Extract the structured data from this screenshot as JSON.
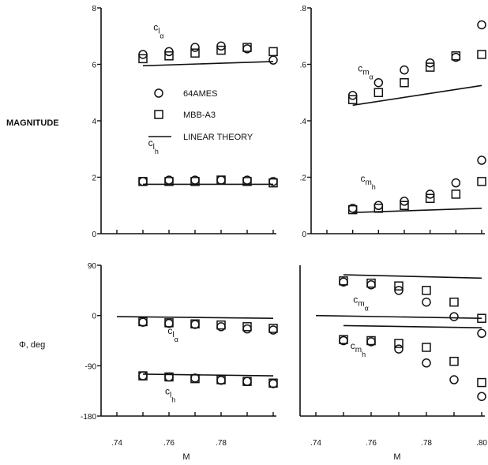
{
  "figure": {
    "ylabel_top": "MAGNITUDE",
    "ylabel_bottom": "Φ, deg",
    "xlabel": "M"
  },
  "legend": {
    "placement": "top-left panel, center",
    "entries": [
      {
        "label": "64AMES",
        "marker": "circle"
      },
      {
        "label": "MBB-A3",
        "marker": "square"
      },
      {
        "label": "LINEAR THEORY",
        "marker": "line"
      }
    ]
  },
  "chart_data": [
    {
      "type": "scatter",
      "panel": "top-left",
      "ylabel": "MAGNITUDE",
      "xlim": [
        0.74,
        0.8
      ],
      "ylim": [
        0,
        8
      ],
      "yticks": [
        "0",
        "2",
        "4",
        "6",
        "8"
      ],
      "annotations": [
        {
          "base": "c",
          "sub": "l",
          "subsub": "α",
          "at": [
            0.754,
            7.2
          ]
        },
        {
          "base": "c",
          "sub": "l",
          "subsub": "h",
          "at": [
            0.752,
            3.1
          ]
        }
      ],
      "series": [
        {
          "name": "64AMES",
          "marker": "circle",
          "group": "c_l_alpha",
          "x": [
            0.75,
            0.76,
            0.77,
            0.78,
            0.79,
            0.8
          ],
          "y": [
            6.35,
            6.45,
            6.6,
            6.65,
            6.55,
            6.15
          ]
        },
        {
          "name": "MBB-A3",
          "marker": "square",
          "group": "c_l_alpha",
          "x": [
            0.75,
            0.76,
            0.77,
            0.78,
            0.79,
            0.8
          ],
          "y": [
            6.2,
            6.3,
            6.4,
            6.5,
            6.6,
            6.45
          ]
        },
        {
          "name": "LINEAR THEORY",
          "marker": "line",
          "group": "c_l_alpha",
          "x": [
            0.75,
            0.8
          ],
          "y": [
            5.95,
            6.1
          ]
        },
        {
          "name": "64AMES",
          "marker": "circle",
          "group": "c_l_h",
          "x": [
            0.75,
            0.76,
            0.77,
            0.78,
            0.79,
            0.8
          ],
          "y": [
            1.85,
            1.9,
            1.9,
            1.9,
            1.9,
            1.85
          ]
        },
        {
          "name": "MBB-A3",
          "marker": "square",
          "group": "c_l_h",
          "x": [
            0.75,
            0.76,
            0.77,
            0.78,
            0.79,
            0.8
          ],
          "y": [
            1.85,
            1.85,
            1.85,
            1.9,
            1.85,
            1.8
          ]
        },
        {
          "name": "LINEAR THEORY",
          "marker": "line",
          "group": "c_l_h",
          "x": [
            0.75,
            0.8
          ],
          "y": [
            1.75,
            1.75
          ]
        }
      ]
    },
    {
      "type": "scatter",
      "panel": "top-right",
      "xlim": [
        0.74,
        0.8
      ],
      "ylim": [
        0,
        0.8
      ],
      "yticks": [
        "0",
        ".2",
        ".4",
        ".6",
        ".8"
      ],
      "annotations": [
        {
          "base": "c",
          "sub": "m",
          "subsub": "α",
          "at": [
            0.752,
            0.575
          ]
        },
        {
          "base": "c",
          "sub": "m",
          "subsub": "h",
          "at": [
            0.753,
            0.185
          ]
        }
      ],
      "series": [
        {
          "name": "64AMES",
          "marker": "circle",
          "group": "c_m_alpha",
          "x": [
            0.75,
            0.76,
            0.77,
            0.78,
            0.79,
            0.8
          ],
          "y": [
            0.49,
            0.535,
            0.58,
            0.605,
            0.625,
            0.74
          ]
        },
        {
          "name": "MBB-A3",
          "marker": "square",
          "group": "c_m_alpha",
          "x": [
            0.75,
            0.76,
            0.77,
            0.78,
            0.79,
            0.8
          ],
          "y": [
            0.475,
            0.5,
            0.535,
            0.59,
            0.63,
            0.635
          ]
        },
        {
          "name": "LINEAR THEORY",
          "marker": "line",
          "group": "c_m_alpha",
          "x": [
            0.75,
            0.8
          ],
          "y": [
            0.455,
            0.525
          ]
        },
        {
          "name": "64AMES",
          "marker": "circle",
          "group": "c_m_h",
          "x": [
            0.75,
            0.76,
            0.77,
            0.78,
            0.79,
            0.8
          ],
          "y": [
            0.09,
            0.1,
            0.115,
            0.14,
            0.18,
            0.26
          ]
        },
        {
          "name": "MBB-A3",
          "marker": "square",
          "group": "c_m_h",
          "x": [
            0.75,
            0.76,
            0.77,
            0.78,
            0.79,
            0.8
          ],
          "y": [
            0.085,
            0.09,
            0.1,
            0.125,
            0.14,
            0.185
          ]
        },
        {
          "name": "LINEAR THEORY",
          "marker": "line",
          "group": "c_m_h",
          "x": [
            0.75,
            0.8
          ],
          "y": [
            0.075,
            0.09
          ]
        }
      ]
    },
    {
      "type": "scatter",
      "panel": "bottom-left",
      "ylabel": "Φ, deg",
      "xlabel": "M",
      "xlim": [
        0.74,
        0.8
      ],
      "ylim": [
        -180,
        90
      ],
      "yticks": [
        "-180",
        "-90",
        "0",
        "90"
      ],
      "xticks": [
        ".74",
        ".76",
        ".78"
      ],
      "annotations": [
        {
          "base": "c",
          "sub": "l",
          "subsub": "α",
          "at": [
            0.7595,
            -33
          ]
        },
        {
          "base": "c",
          "sub": "l",
          "subsub": "h",
          "at": [
            0.7585,
            -141
          ]
        }
      ],
      "series": [
        {
          "name": "64AMES",
          "marker": "circle",
          "group": "c_l_alpha",
          "x": [
            0.75,
            0.76,
            0.77,
            0.78,
            0.79,
            0.8
          ],
          "y": [
            -12,
            -14,
            -16,
            -20,
            -24,
            -26
          ]
        },
        {
          "name": "MBB-A3",
          "marker": "square",
          "group": "c_l_alpha",
          "x": [
            0.75,
            0.76,
            0.77,
            0.78,
            0.79,
            0.8
          ],
          "y": [
            -11,
            -13,
            -15,
            -17,
            -20,
            -23
          ]
        },
        {
          "name": "LINEAR THEORY",
          "marker": "line",
          "group": "c_l_alpha",
          "x": [
            0.74,
            0.8
          ],
          "y": [
            -2,
            -5
          ]
        },
        {
          "name": "64AMES",
          "marker": "circle",
          "group": "c_l_h",
          "x": [
            0.75,
            0.76,
            0.77,
            0.78,
            0.79,
            0.8
          ],
          "y": [
            -108,
            -110,
            -112,
            -116,
            -118,
            -122
          ]
        },
        {
          "name": "MBB-A3",
          "marker": "square",
          "group": "c_l_h",
          "x": [
            0.75,
            0.76,
            0.77,
            0.78,
            0.79,
            0.8
          ],
          "y": [
            -108,
            -110,
            -113,
            -115,
            -118,
            -121
          ]
        },
        {
          "name": "LINEAR THEORY",
          "marker": "line",
          "group": "c_l_h",
          "x": [
            0.75,
            0.8
          ],
          "y": [
            -105,
            -108
          ]
        }
      ]
    },
    {
      "type": "scatter",
      "panel": "bottom-right",
      "xlabel": "M",
      "xlim": [
        0.74,
        0.8
      ],
      "ylim": [
        -180,
        90
      ],
      "xticks": [
        ".74",
        ".76",
        ".78",
        ".80"
      ],
      "annotations": [
        {
          "base": "c",
          "sub": "m",
          "subsub": "α",
          "at": [
            0.7535,
            23
          ]
        },
        {
          "base": "c",
          "sub": "m",
          "subsub": "h",
          "at": [
            0.7525,
            -60
          ]
        }
      ],
      "series": [
        {
          "name": "64AMES",
          "marker": "circle",
          "group": "c_m_alpha",
          "x": [
            0.75,
            0.76,
            0.77,
            0.78,
            0.79,
            0.8
          ],
          "y": [
            60,
            55,
            45,
            24,
            -2,
            -32
          ]
        },
        {
          "name": "MBB-A3",
          "marker": "square",
          "group": "c_m_alpha",
          "x": [
            0.75,
            0.76,
            0.77,
            0.78,
            0.79,
            0.8
          ],
          "y": [
            62,
            58,
            53,
            45,
            24,
            -5
          ]
        },
        {
          "name": "LINEAR THEORY",
          "marker": "line",
          "group": "c_m_alpha",
          "x": [
            0.75,
            0.8
          ],
          "y": [
            73,
            67
          ]
        },
        {
          "name": "64AMES",
          "marker": "circle",
          "group": "c_m_h",
          "x": [
            0.75,
            0.76,
            0.77,
            0.78,
            0.79,
            0.8
          ],
          "y": [
            -45,
            -47,
            -60,
            -85,
            -115,
            -145
          ]
        },
        {
          "name": "MBB-A3",
          "marker": "square",
          "group": "c_m_h",
          "x": [
            0.75,
            0.76,
            0.77,
            0.78,
            0.79,
            0.8
          ],
          "y": [
            -43,
            -45,
            -50,
            -57,
            -82,
            -120
          ]
        },
        {
          "name": "LINEAR THEORY",
          "marker": "line",
          "group": "c_m_h",
          "x": [
            0.75,
            0.8
          ],
          "y": [
            -18,
            -22
          ]
        },
        {
          "name": "LINEAR THEORY",
          "marker": "line",
          "group": "reference",
          "x": [
            0.74,
            0.8
          ],
          "y": [
            0,
            -5
          ]
        }
      ]
    }
  ]
}
